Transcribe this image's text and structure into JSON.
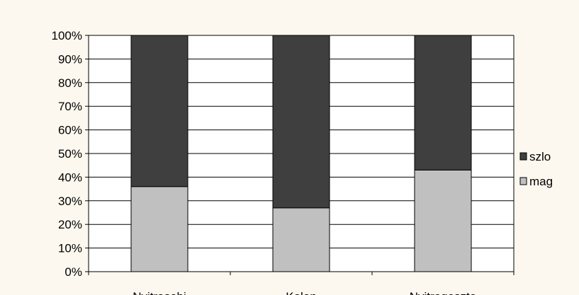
{
  "colors": {
    "background": "#fdf8ef",
    "plot_background": "#ffffff",
    "grid": "#000000",
    "series_top": "#3f3f3f",
    "series_bottom": "#c0c0c0"
  },
  "chart_data": {
    "type": "bar",
    "stacked": true,
    "percent_stacked": true,
    "categories": [
      "Nyitrasebi",
      "Kolon",
      "Nyitrageszte"
    ],
    "series": [
      {
        "name": "mag",
        "values": [
          36,
          27,
          43
        ]
      },
      {
        "name": "szlo",
        "values": [
          64,
          73,
          57
        ]
      }
    ],
    "y_ticks": [
      "0%",
      "10%",
      "20%",
      "30%",
      "40%",
      "50%",
      "60%",
      "70%",
      "80%",
      "90%",
      "100%"
    ],
    "ylim": [
      0,
      100
    ],
    "grid": true,
    "legend_position": "right",
    "legend_order": [
      "szlo",
      "mag"
    ],
    "title": "",
    "xlabel": "",
    "ylabel": ""
  }
}
